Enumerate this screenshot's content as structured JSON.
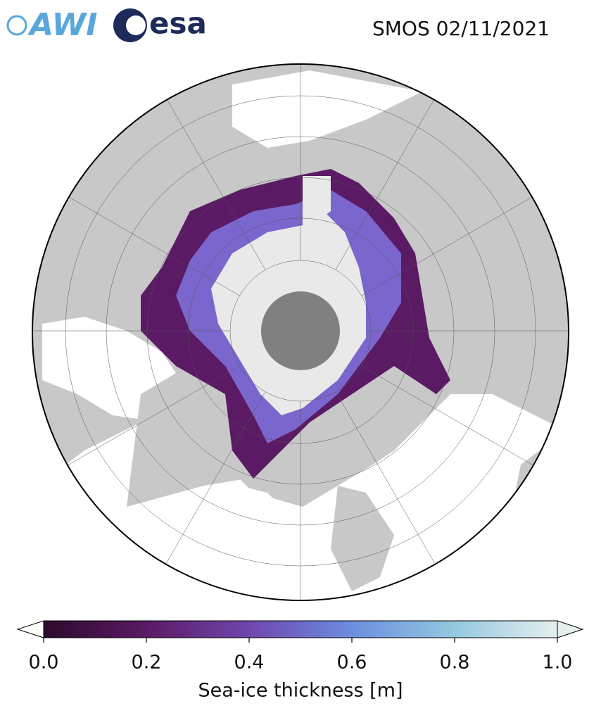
{
  "header": {
    "logos": [
      "AWI",
      "esa"
    ],
    "title": "SMOS 02/11/2021"
  },
  "colorbar": {
    "label": "Sea-ice thickness [m]",
    "lim": [
      0,
      1
    ],
    "ticks": [
      {
        "value": 0,
        "label": "0.0"
      },
      0.2,
      0.4,
      0.6,
      0.8,
      {
        "value": 1,
        "label": "1.0"
      }
    ],
    "colors": [
      "#2c0a2c",
      "#5a1a64",
      "#7046ae",
      "#6c8ee0",
      "#93c9df",
      "#e6eeee"
    ]
  }
}
